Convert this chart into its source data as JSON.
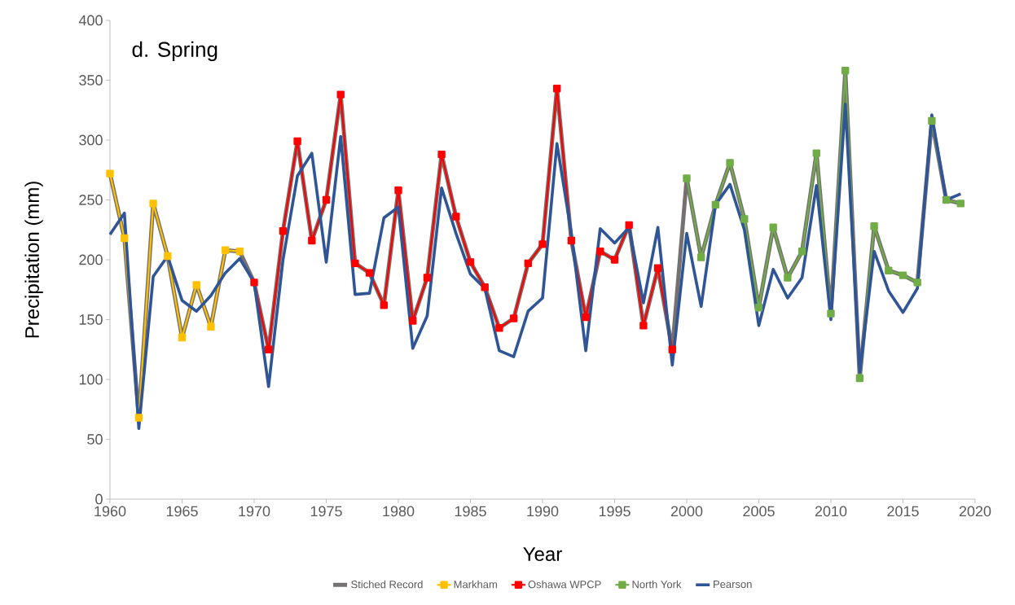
{
  "chart_data": {
    "type": "line",
    "title": "d. Spring",
    "xlabel": "Year",
    "ylabel": "Precipitation (mm)",
    "xlim": [
      1960,
      2020
    ],
    "xticks": [
      1960,
      1965,
      1970,
      1975,
      1980,
      1985,
      1990,
      1995,
      2000,
      2005,
      2010,
      2015,
      2020
    ],
    "ylim": [
      0,
      400
    ],
    "yticks": [
      0,
      50,
      100,
      150,
      200,
      250,
      300,
      350,
      400
    ],
    "grid": false,
    "legend": "bottom",
    "series": [
      {
        "name": "Stiched Record",
        "color": "#767171",
        "marker": "none",
        "x": [
          1960,
          1961,
          1962,
          1963,
          1964,
          1965,
          1966,
          1967,
          1968,
          1969,
          1970,
          1971,
          1972,
          1973,
          1974,
          1975,
          1976,
          1977,
          1978,
          1979,
          1980,
          1981,
          1982,
          1983,
          1984,
          1985,
          1986,
          1987,
          1988,
          1989,
          1990,
          1991,
          1992,
          1993,
          1994,
          1995,
          1996,
          1997,
          1998,
          1999,
          2000,
          2001,
          2002,
          2003,
          2004,
          2005,
          2006,
          2007,
          2008,
          2009,
          2010,
          2011,
          2012,
          2013,
          2014,
          2015,
          2016,
          2017,
          2018,
          2019
        ],
        "values": [
          272,
          218,
          68,
          247,
          203,
          135,
          179,
          144,
          208,
          207,
          181,
          125,
          224,
          299,
          216,
          250,
          338,
          197,
          189,
          162,
          258,
          149,
          185,
          288,
          236,
          198,
          177,
          143,
          151,
          197,
          213,
          343,
          216,
          152,
          207,
          200,
          229,
          145,
          193,
          125,
          268,
          202,
          246,
          281,
          234,
          160,
          227,
          185,
          207,
          289,
          155,
          358,
          101,
          228,
          191,
          187,
          181,
          316,
          250,
          247
        ]
      },
      {
        "name": "Markham",
        "color": "#ffc000",
        "marker": "square",
        "x": [
          1960,
          1961,
          1962,
          1963,
          1964,
          1965,
          1966,
          1967,
          1968,
          1969
        ],
        "values": [
          272,
          218,
          68,
          247,
          203,
          135,
          179,
          144,
          208,
          207
        ]
      },
      {
        "name": "Oshawa WPCP",
        "color": "#ff0000",
        "marker": "square",
        "x": [
          1970,
          1971,
          1972,
          1973,
          1974,
          1975,
          1976,
          1977,
          1978,
          1979,
          1980,
          1981,
          1982,
          1983,
          1984,
          1985,
          1986,
          1987,
          1988,
          1989,
          1990,
          1991,
          1992,
          1993,
          1994,
          1995,
          1996,
          1997,
          1998,
          1999
        ],
        "values": [
          181,
          125,
          224,
          299,
          216,
          250,
          338,
          197,
          189,
          162,
          258,
          149,
          185,
          288,
          236,
          198,
          177,
          143,
          151,
          197,
          213,
          343,
          216,
          152,
          207,
          200,
          229,
          145,
          193,
          125
        ]
      },
      {
        "name": "North York",
        "color": "#70ad47",
        "marker": "square",
        "x": [
          2000,
          2001,
          2002,
          2003,
          2004,
          2005,
          2006,
          2007,
          2008,
          2009,
          2010,
          2011,
          2012,
          2013,
          2014,
          2015,
          2016,
          2017,
          2018,
          2019
        ],
        "values": [
          268,
          202,
          246,
          281,
          234,
          160,
          227,
          185,
          207,
          289,
          155,
          358,
          101,
          228,
          191,
          187,
          181,
          316,
          250,
          247
        ]
      },
      {
        "name": "Pearson",
        "color": "#2f5597",
        "marker": "none",
        "x": [
          1960,
          1961,
          1962,
          1963,
          1964,
          1965,
          1966,
          1967,
          1968,
          1969,
          1970,
          1971,
          1972,
          1973,
          1974,
          1975,
          1976,
          1977,
          1978,
          1979,
          1980,
          1981,
          1982,
          1983,
          1984,
          1985,
          1986,
          1987,
          1988,
          1989,
          1990,
          1991,
          1992,
          1993,
          1994,
          1995,
          1996,
          1997,
          1998,
          1999,
          2000,
          2001,
          2002,
          2003,
          2004,
          2005,
          2006,
          2007,
          2008,
          2009,
          2010,
          2011,
          2012,
          2013,
          2014,
          2015,
          2016,
          2017,
          2018,
          2019
        ],
        "values": [
          221,
          239,
          59,
          186,
          203,
          166,
          157,
          170,
          189,
          201,
          181,
          94,
          200,
          270,
          289,
          198,
          303,
          171,
          172,
          235,
          244,
          126,
          153,
          260,
          222,
          188,
          176,
          124,
          119,
          157,
          168,
          297,
          222,
          124,
          226,
          214,
          227,
          164,
          227,
          112,
          222,
          161,
          246,
          263,
          225,
          145,
          192,
          168,
          185,
          262,
          150,
          330,
          106,
          207,
          174,
          156,
          176,
          321,
          250,
          255
        ]
      }
    ]
  }
}
